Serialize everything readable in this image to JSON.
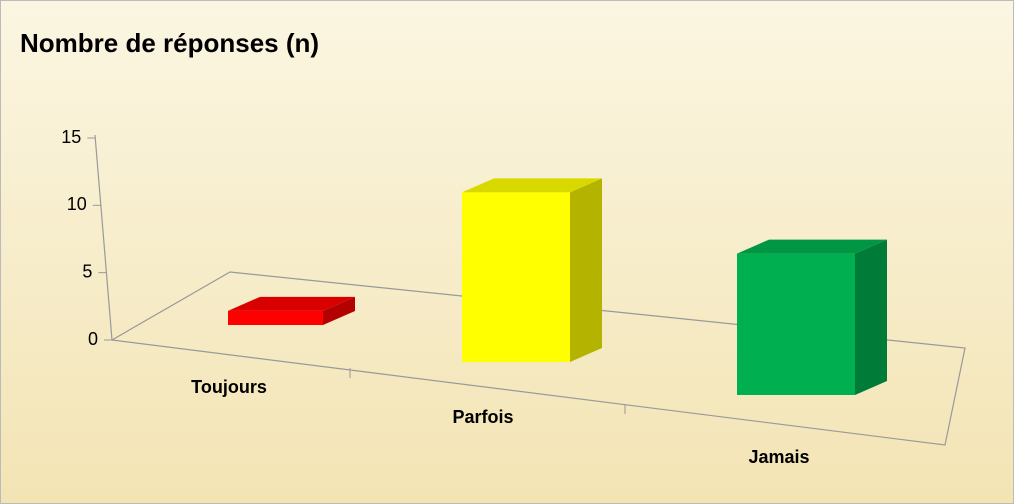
{
  "chart_data": {
    "type": "bar3d",
    "title": "Nombre  de réponses (n)",
    "categories": [
      "Toujours",
      "Parfois",
      "Jamais"
    ],
    "values": [
      1,
      12,
      10
    ],
    "colors": [
      "#ff0000",
      "#ffff00",
      "#00b050"
    ],
    "ylim": [
      0,
      15
    ],
    "yticks": [
      0,
      5,
      10,
      15
    ]
  }
}
